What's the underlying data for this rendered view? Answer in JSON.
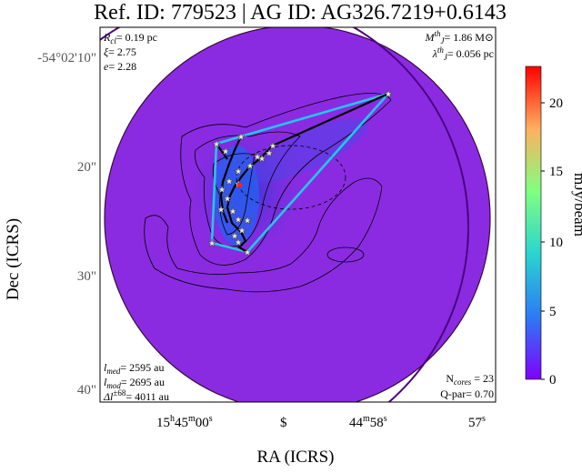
{
  "chart_data": {
    "type": "heatmap",
    "title": "Ref. ID: 779523 | AG ID: AG326.7219+0.6143",
    "xlabel": "RA (ICRS)",
    "ylabel": "Dec (ICRS)",
    "x_ticks": [
      "15h45m00s",
      "s",
      "44m58s",
      "57s"
    ],
    "y_ticks": [
      "-54°02'10\"",
      "20\"",
      "30\"",
      "40\""
    ],
    "colorbar": {
      "label": "mJy/beam",
      "range": [
        0,
        22
      ],
      "ticks": [
        0,
        5,
        10,
        15,
        20
      ],
      "colormap": "rainbow"
    },
    "annotations": {
      "top_left": [
        "R_cl = 0.19 pc",
        "ξ = 2.75",
        "e = 2.28"
      ],
      "top_right": [
        "M_J^th = 1.86 M⊙",
        "λ_J^th = 0.056 pc"
      ],
      "bottom_left": [
        "l_med = 2595 au",
        "l_mod = 2695 au",
        "Δl^±68 = 4011 au"
      ],
      "bottom_right": [
        "N_cores = 23",
        "Q-par = 0.70"
      ]
    },
    "cores_count": 23
  },
  "colors": {
    "background_map": "#8a2be2",
    "hull_line": "#22c7e8",
    "mst_line": "#000000",
    "circle_large": "#3a0a3a",
    "circle_outer": "#4b0082"
  }
}
